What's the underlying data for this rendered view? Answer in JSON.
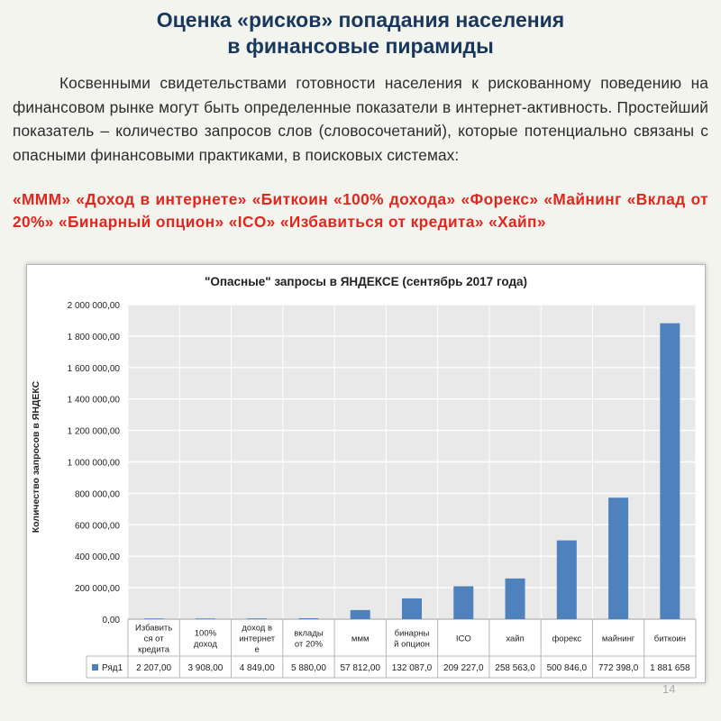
{
  "slide": {
    "title_line1": "Оценка «рисков» попадания населения",
    "title_line2": "в финансовые пирамиды",
    "paragraph": "Косвенными свидетельствами готовности населения к рискованному поведению на финансовом рынке могут быть определенные показатели в интернет-активность. Простейший показатель – количество запросов слов (словосочетаний), которые потенциально связаны с опасными финансовыми практиками, в поисковых системах:",
    "keywords": "«МММ» «Доход в интернете» «Биткоин «100% дохода» «Форекс» «Майнинг «Вклад от 20%» «Бинарный опцион» «ICO» «Избавиться от кредита» «Хайп»",
    "page_number": "14"
  },
  "colors": {
    "bar": "#4f81bd",
    "title": "#17375e",
    "keywords": "#e0261d"
  },
  "chart_data": {
    "type": "bar",
    "title": "\"Опасные\" запросы в ЯНДЕКСЕ (сентябрь 2017 года)",
    "ylabel": "Количество запросов в ЯНДЕКС",
    "xlabel": "",
    "ylim": [
      0,
      2000000
    ],
    "y_ticks": [
      "0,00",
      "200 000,00",
      "400 000,00",
      "600 000,00",
      "800 000,00",
      "1 000 000,00",
      "1 200 000,00",
      "1 400 000,00",
      "1 600 000,00",
      "1 800 000,00",
      "2 000 000,00"
    ],
    "grid": true,
    "legend": "bottom-left (data table)",
    "categories": [
      [
        "Избавить",
        "ся от",
        "кредита"
      ],
      [
        "100%",
        "доход"
      ],
      [
        "доход в",
        "интернет",
        "е"
      ],
      [
        "вклады",
        "от 20%"
      ],
      [
        "ммм"
      ],
      [
        "бинарны",
        "й опцион"
      ],
      [
        "ICO"
      ],
      [
        "хайп"
      ],
      [
        "форекс"
      ],
      [
        "майнинг"
      ],
      [
        "биткоин"
      ]
    ],
    "series": [
      {
        "name": "Ряд1",
        "values": [
          2207,
          3908,
          4849,
          5880,
          57812,
          132087,
          209227,
          258563,
          500846,
          772398,
          1881658
        ],
        "labels": [
          "2 207,00",
          "3 908,00",
          "4 849,00",
          "5 880,00",
          "57 812,00",
          "132 087,0",
          "209 227,0",
          "258 563,0",
          "500 846,0",
          "772 398,0",
          "1 881 658"
        ]
      }
    ]
  }
}
